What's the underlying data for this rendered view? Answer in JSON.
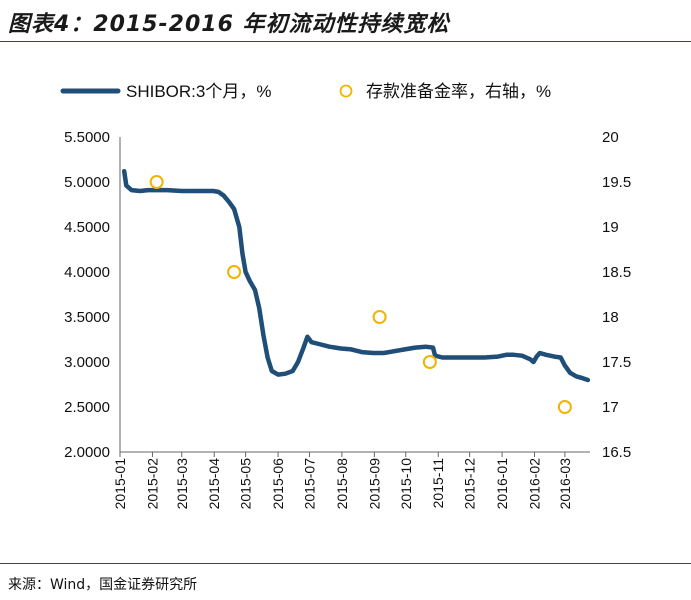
{
  "figure_title": "图表4：2015-2016 年初流动性持续宽松",
  "source_note": "来源：Wind，国金证券研究所",
  "colors": {
    "shibor": "#1f4e79",
    "rrr": "#f0b400",
    "rule": "#1f4e79"
  },
  "chart_data": {
    "type": "line",
    "legend_position": "top",
    "grid": false,
    "x_tick_labels": [
      "2015-01",
      "2015-02",
      "2015-03",
      "2015-04",
      "2015-05",
      "2015-06",
      "2015-07",
      "2015-08",
      "2015-09",
      "2015-10",
      "2015-11",
      "2015-12",
      "2016-01",
      "2016-02",
      "2016-03"
    ],
    "y_left": {
      "range": [
        2.0,
        5.5
      ],
      "ticks": [
        "2.0000",
        "2.5000",
        "3.0000",
        "3.5000",
        "4.0000",
        "4.5000",
        "5.0000",
        "5.5000"
      ]
    },
    "y_right": {
      "range": [
        16.5,
        20
      ],
      "ticks": [
        "16.5",
        "17",
        "17.5",
        "18",
        "18.5",
        "19",
        "19.5",
        "20"
      ]
    },
    "series": [
      {
        "name": "SHIBOR:3个月，%",
        "kind": "line",
        "axis": "left",
        "points": [
          [
            "2015-01-05",
            5.12
          ],
          [
            "2015-01-07",
            4.96
          ],
          [
            "2015-01-12",
            4.91
          ],
          [
            "2015-01-20",
            4.9
          ],
          [
            "2015-01-28",
            4.91
          ],
          [
            "2015-02-05",
            4.91
          ],
          [
            "2015-02-15",
            4.91
          ],
          [
            "2015-03-01",
            4.9
          ],
          [
            "2015-03-20",
            4.9
          ],
          [
            "2015-03-31",
            4.9
          ],
          [
            "2015-04-05",
            4.89
          ],
          [
            "2015-04-10",
            4.85
          ],
          [
            "2015-04-15",
            4.78
          ],
          [
            "2015-04-20",
            4.7
          ],
          [
            "2015-04-25",
            4.5
          ],
          [
            "2015-04-28",
            4.2
          ],
          [
            "2015-05-01",
            4.0
          ],
          [
            "2015-05-05",
            3.9
          ],
          [
            "2015-05-10",
            3.8
          ],
          [
            "2015-05-14",
            3.6
          ],
          [
            "2015-05-18",
            3.3
          ],
          [
            "2015-05-22",
            3.05
          ],
          [
            "2015-05-26",
            2.9
          ],
          [
            "2015-06-01",
            2.86
          ],
          [
            "2015-06-08",
            2.87
          ],
          [
            "2015-06-15",
            2.9
          ],
          [
            "2015-06-20",
            3.0
          ],
          [
            "2015-06-25",
            3.15
          ],
          [
            "2015-06-29",
            3.28
          ],
          [
            "2015-07-03",
            3.22
          ],
          [
            "2015-07-10",
            3.2
          ],
          [
            "2015-07-20",
            3.17
          ],
          [
            "2015-07-31",
            3.15
          ],
          [
            "2015-08-10",
            3.14
          ],
          [
            "2015-08-20",
            3.11
          ],
          [
            "2015-08-31",
            3.1
          ],
          [
            "2015-09-10",
            3.1
          ],
          [
            "2015-09-20",
            3.12
          ],
          [
            "2015-09-30",
            3.14
          ],
          [
            "2015-10-10",
            3.16
          ],
          [
            "2015-10-20",
            3.17
          ],
          [
            "2015-10-27",
            3.16
          ],
          [
            "2015-10-29",
            3.07
          ],
          [
            "2015-11-05",
            3.05
          ],
          [
            "2015-11-20",
            3.05
          ],
          [
            "2015-12-01",
            3.05
          ],
          [
            "2015-12-15",
            3.05
          ],
          [
            "2015-12-28",
            3.06
          ],
          [
            "2016-01-05",
            3.08
          ],
          [
            "2016-01-12",
            3.08
          ],
          [
            "2016-01-20",
            3.07
          ],
          [
            "2016-01-28",
            3.03
          ],
          [
            "2016-01-31",
            3.0
          ],
          [
            "2016-02-03",
            3.06
          ],
          [
            "2016-02-06",
            3.1
          ],
          [
            "2016-02-12",
            3.08
          ],
          [
            "2016-02-20",
            3.06
          ],
          [
            "2016-02-26",
            3.05
          ],
          [
            "2016-03-01",
            2.96
          ],
          [
            "2016-03-06",
            2.88
          ],
          [
            "2016-03-12",
            2.84
          ],
          [
            "2016-03-18",
            2.82
          ],
          [
            "2016-03-23",
            2.8
          ]
        ]
      },
      {
        "name": "存款准备金率，右轴，%",
        "kind": "markers",
        "axis": "right",
        "points": [
          [
            "2015-02-05",
            19.5
          ],
          [
            "2015-04-20",
            18.5
          ],
          [
            "2015-09-06",
            18.0
          ],
          [
            "2015-10-24",
            17.5
          ],
          [
            "2016-03-01",
            17.0
          ]
        ]
      }
    ]
  }
}
